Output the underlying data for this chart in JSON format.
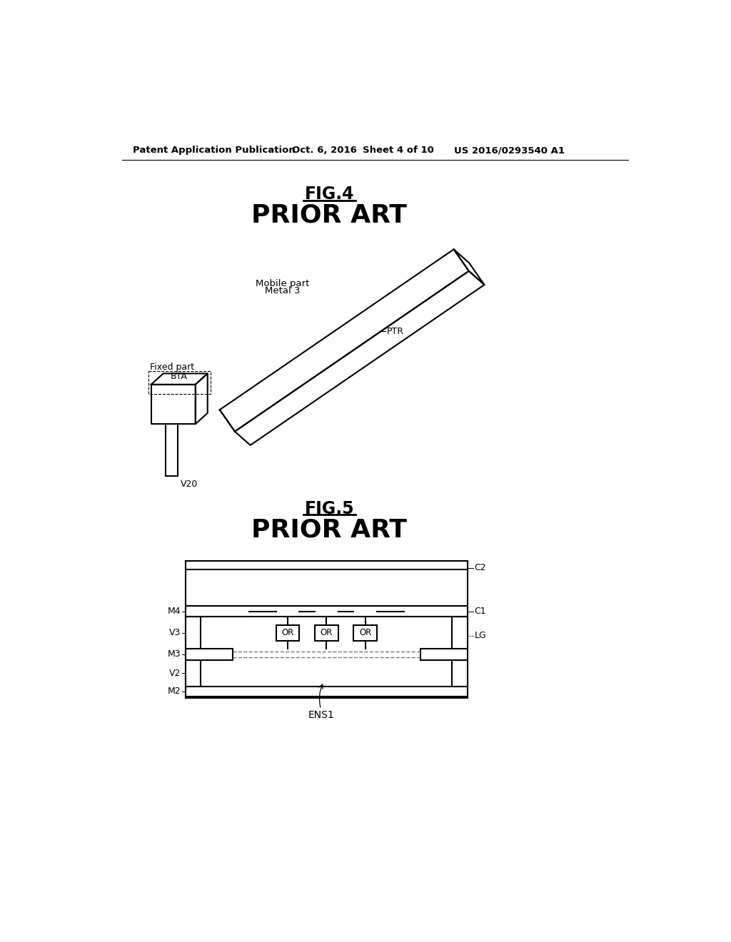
{
  "background_color": "#ffffff",
  "header_text": "Patent Application Publication",
  "header_date": "Oct. 6, 2016",
  "header_sheet": "Sheet 4 of 10",
  "header_patent": "US 2016/0293540 A1",
  "fig4_title_line1": "FIG.4",
  "fig4_title_line2": "PRIOR ART",
  "fig5_title_line1": "FIG.5",
  "fig5_title_line2": "PRIOR ART",
  "label_mobile_part": "Mobile part",
  "label_metal3": "Metal 3",
  "label_PTR": "PTR",
  "label_fixed_part": "Fixed part",
  "label_BTA": "BTA",
  "label_V20": "V20",
  "label_C2": "C2",
  "label_C1": "C1",
  "label_LG": "LG",
  "label_M4": "M4",
  "label_V3": "V3",
  "label_OR": "OR",
  "label_M3": "M3",
  "label_V2": "V2",
  "label_M2": "M2",
  "label_ENS1": "ENS1",
  "line_color": "#000000",
  "line_width": 1.5
}
